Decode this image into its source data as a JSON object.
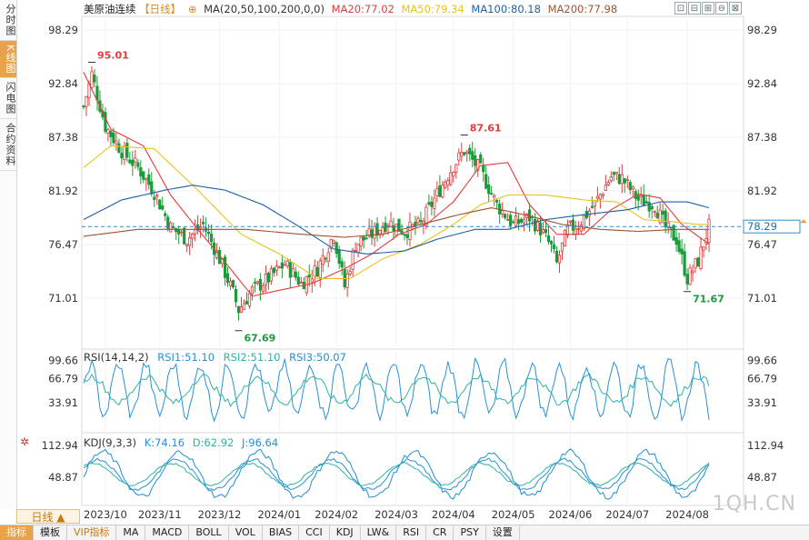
{
  "side_tabs": [
    "分时图",
    "K线图",
    "闪电图",
    "合约资料"
  ],
  "active_side_tab": 1,
  "legend": {
    "symbol": "美原油连续",
    "period_tag": "【日线】",
    "period_icon": "⊕",
    "ma_params": "MA(20,50,100,200,0,0)",
    "ma20": "MA20:77.02",
    "ma50": "MA50:79.34",
    "ma100": "MA100:80.18",
    "ma200": "MA200:77.98"
  },
  "toolbar_icons": [
    "expand-icon",
    "shrink-icon",
    "zoom-in-icon",
    "zoom-out-icon",
    "fullscreen-icon",
    "close-icon"
  ],
  "toolbar_glyphs": [
    "⊡",
    "⊟",
    "⊞",
    "⊖",
    "⊠",
    "⊗"
  ],
  "rsi_legend": {
    "title": "RSI(14,14,2)",
    "rsi1": "RSI1:51.10",
    "rsi2": "RSI2:51.10",
    "rsi3": "RSI3:50.07"
  },
  "kdj_legend": {
    "title": "KDJ(9,3,3)",
    "k": "K:74.16",
    "d": "D:62.92",
    "j": "J:96.64"
  },
  "period_button": "日线 ▲",
  "bottom_tabs": [
    "指标",
    "模板",
    "VIP指标",
    "MA",
    "MACD",
    "BOLL",
    "VOL",
    "BIAS",
    "CCI",
    "KDJ",
    "LW&",
    "RSI",
    "CR",
    "PSY",
    "设置"
  ],
  "watermark": "1QH.CN",
  "colors": {
    "up": "#e23b3b",
    "down": "#1a9b3a",
    "ma20": "#e23b3b",
    "ma50": "#e8c21e",
    "ma100": "#1f5fa8",
    "ma200": "#a0522d",
    "price_line": "#2a8fd6"
  },
  "chart_data": {
    "type": "candlestick",
    "x_ticks": [
      "2023/10",
      "2023/11",
      "2023/12",
      "2024/01",
      "2024/02",
      "2024/03",
      "2024/04",
      "2024/05",
      "2024/06",
      "2024/07",
      "2024/08"
    ],
    "y_ticks": [
      98.29,
      92.84,
      87.38,
      81.92,
      76.47,
      71.01
    ],
    "ylim": [
      66.0,
      99.5
    ],
    "current_price": 78.29,
    "annotations": [
      {
        "label": "95.01",
        "value": 95.01,
        "date_index": 3,
        "kind": "high"
      },
      {
        "label": "67.69",
        "value": 67.69,
        "date_index": 57,
        "kind": "low"
      },
      {
        "label": "87.61",
        "value": 87.61,
        "date_index": 140,
        "kind": "high"
      },
      {
        "label": "71.67",
        "value": 71.67,
        "date_index": 222,
        "kind": "low"
      }
    ],
    "close_anchors": [
      [
        0,
        90.5
      ],
      [
        3,
        93.8
      ],
      [
        8,
        88.5
      ],
      [
        14,
        86.0
      ],
      [
        20,
        84.3
      ],
      [
        26,
        81.8
      ],
      [
        32,
        78.2
      ],
      [
        38,
        77.0
      ],
      [
        44,
        78.5
      ],
      [
        50,
        75.0
      ],
      [
        55,
        71.5
      ],
      [
        57,
        69.8
      ],
      [
        62,
        71.8
      ],
      [
        68,
        73.0
      ],
      [
        74,
        74.5
      ],
      [
        80,
        72.5
      ],
      [
        86,
        74.0
      ],
      [
        92,
        77.5
      ],
      [
        96,
        72.2
      ],
      [
        100,
        76.5
      ],
      [
        106,
        77.5
      ],
      [
        112,
        78.8
      ],
      [
        118,
        77.8
      ],
      [
        124,
        78.5
      ],
      [
        130,
        81.6
      ],
      [
        136,
        84.5
      ],
      [
        140,
        86.0
      ],
      [
        146,
        84.0
      ],
      [
        152,
        80.5
      ],
      [
        158,
        78.5
      ],
      [
        164,
        79.2
      ],
      [
        168,
        78.0
      ],
      [
        172,
        76.2
      ],
      [
        174,
        74.5
      ],
      [
        178,
        78.0
      ],
      [
        182,
        78.5
      ],
      [
        188,
        80.6
      ],
      [
        194,
        83.4
      ],
      [
        198,
        83.2
      ],
      [
        204,
        81.0
      ],
      [
        210,
        80.5
      ],
      [
        214,
        78.2
      ],
      [
        218,
        77.0
      ],
      [
        222,
        73.0
      ],
      [
        226,
        74.8
      ],
      [
        230,
        78.3
      ]
    ],
    "ma_lines": [
      {
        "name": "MA20",
        "color": "#e23b3b",
        "points": [
          [
            0,
            94.0
          ],
          [
            10,
            88.2
          ],
          [
            22,
            86.5
          ],
          [
            32,
            81.5
          ],
          [
            42,
            78.0
          ],
          [
            54,
            74.0
          ],
          [
            62,
            71.2
          ],
          [
            72,
            71.8
          ],
          [
            84,
            72.5
          ],
          [
            96,
            74.0
          ],
          [
            106,
            75.5
          ],
          [
            116,
            77.5
          ],
          [
            126,
            78.5
          ],
          [
            136,
            80.8
          ],
          [
            146,
            84.5
          ],
          [
            156,
            84.8
          ],
          [
            164,
            80.5
          ],
          [
            174,
            77.5
          ],
          [
            184,
            77.5
          ],
          [
            194,
            80.0
          ],
          [
            204,
            81.6
          ],
          [
            212,
            81.2
          ],
          [
            220,
            78.5
          ],
          [
            230,
            76.5
          ]
        ]
      },
      {
        "name": "MA50",
        "color": "#e8c21e",
        "points": [
          [
            0,
            84.3
          ],
          [
            10,
            86.5
          ],
          [
            26,
            86.2
          ],
          [
            42,
            82.0
          ],
          [
            58,
            77.5
          ],
          [
            72,
            75.5
          ],
          [
            86,
            73.0
          ],
          [
            98,
            73.0
          ],
          [
            110,
            75.0
          ],
          [
            124,
            76.5
          ],
          [
            136,
            78.5
          ],
          [
            146,
            80.5
          ],
          [
            156,
            81.5
          ],
          [
            170,
            81.5
          ],
          [
            184,
            81.0
          ],
          [
            196,
            80.8
          ],
          [
            206,
            79.0
          ],
          [
            216,
            78.8
          ],
          [
            226,
            78.5
          ],
          [
            230,
            78.5
          ]
        ]
      },
      {
        "name": "MA100",
        "color": "#1f5fa8",
        "points": [
          [
            0,
            79.0
          ],
          [
            14,
            81.0
          ],
          [
            30,
            82.0
          ],
          [
            40,
            82.5
          ],
          [
            52,
            82.0
          ],
          [
            66,
            80.5
          ],
          [
            78,
            78.5
          ],
          [
            92,
            76.0
          ],
          [
            104,
            75.5
          ],
          [
            118,
            75.8
          ],
          [
            130,
            77.0
          ],
          [
            144,
            78.0
          ],
          [
            156,
            78.0
          ],
          [
            170,
            79.0
          ],
          [
            184,
            79.5
          ],
          [
            200,
            80.0
          ],
          [
            212,
            80.8
          ],
          [
            222,
            80.8
          ],
          [
            230,
            80.2
          ]
        ]
      },
      {
        "name": "MA200",
        "color": "#a0522d",
        "points": [
          [
            0,
            77.3
          ],
          [
            20,
            78.0
          ],
          [
            40,
            78.0
          ],
          [
            60,
            78.0
          ],
          [
            80,
            77.5
          ],
          [
            96,
            77.2
          ],
          [
            110,
            77.5
          ],
          [
            124,
            78.5
          ],
          [
            138,
            79.5
          ],
          [
            150,
            80.2
          ],
          [
            162,
            79.5
          ],
          [
            176,
            78.5
          ],
          [
            190,
            78.0
          ],
          [
            204,
            77.8
          ],
          [
            218,
            78.0
          ],
          [
            230,
            78.0
          ]
        ]
      }
    ],
    "rsi": {
      "y_ticks": [
        99.66,
        66.79,
        33.91
      ],
      "last_values": [
        51.1,
        51.1,
        50.07
      ]
    },
    "kdj": {
      "y_ticks": [
        112.94,
        48.87
      ],
      "last_values": [
        74.16,
        62.92,
        96.64
      ]
    }
  }
}
